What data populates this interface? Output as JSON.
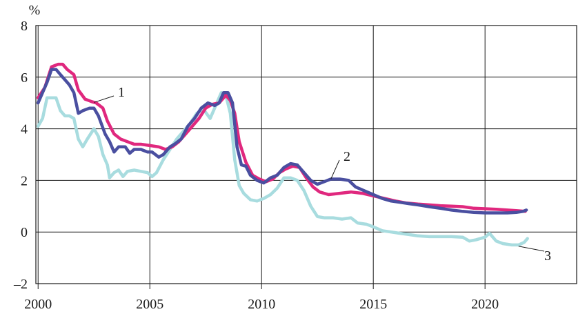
{
  "chart_data": {
    "type": "line",
    "ylabel": "%",
    "xlabel": "",
    "title": "",
    "xlim": [
      1999.9,
      2024.1
    ],
    "ylim": [
      -2,
      8
    ],
    "x_ticks": [
      2000,
      2005,
      2010,
      2015,
      2020
    ],
    "x_tick_labels": [
      "2000",
      "2005",
      "2010",
      "2015",
      "2020"
    ],
    "y_ticks": [
      -2,
      0,
      2,
      4,
      6,
      8
    ],
    "y_tick_labels": [
      "–2",
      "0",
      "2",
      "4",
      "6",
      "8"
    ],
    "grid": "vertical at x ticks, horizontal at y ticks",
    "legend": "none (series numbered by callouts)",
    "series": [
      {
        "name": "1",
        "color": "#e0287e",
        "points": [
          [
            2000.0,
            5.2
          ],
          [
            2000.3,
            5.6
          ],
          [
            2000.6,
            6.4
          ],
          [
            2000.9,
            6.5
          ],
          [
            2001.1,
            6.5
          ],
          [
            2001.3,
            6.3
          ],
          [
            2001.6,
            6.1
          ],
          [
            2001.8,
            5.5
          ],
          [
            2002.1,
            5.15
          ],
          [
            2002.4,
            5.05
          ],
          [
            2002.6,
            5.0
          ],
          [
            2002.9,
            4.8
          ],
          [
            2003.1,
            4.3
          ],
          [
            2003.4,
            3.8
          ],
          [
            2003.7,
            3.6
          ],
          [
            2004.0,
            3.5
          ],
          [
            2004.3,
            3.4
          ],
          [
            2004.6,
            3.4
          ],
          [
            2005.0,
            3.35
          ],
          [
            2005.4,
            3.3
          ],
          [
            2005.7,
            3.2
          ],
          [
            2006.0,
            3.3
          ],
          [
            2006.3,
            3.5
          ],
          [
            2006.6,
            3.8
          ],
          [
            2006.9,
            4.1
          ],
          [
            2007.2,
            4.4
          ],
          [
            2007.5,
            4.8
          ],
          [
            2007.8,
            4.95
          ],
          [
            2008.1,
            5.0
          ],
          [
            2008.4,
            5.3
          ],
          [
            2008.6,
            5.1
          ],
          [
            2008.8,
            4.6
          ],
          [
            2009.0,
            3.5
          ],
          [
            2009.3,
            2.7
          ],
          [
            2009.6,
            2.2
          ],
          [
            2009.9,
            2.05
          ],
          [
            2010.2,
            1.95
          ],
          [
            2010.5,
            2.05
          ],
          [
            2010.8,
            2.3
          ],
          [
            2011.1,
            2.45
          ],
          [
            2011.4,
            2.55
          ],
          [
            2011.7,
            2.5
          ],
          [
            2012.0,
            2.1
          ],
          [
            2012.3,
            1.75
          ],
          [
            2012.6,
            1.55
          ],
          [
            2013.0,
            1.45
          ],
          [
            2013.5,
            1.5
          ],
          [
            2014.0,
            1.55
          ],
          [
            2014.5,
            1.5
          ],
          [
            2015.0,
            1.4
          ],
          [
            2015.5,
            1.3
          ],
          [
            2016.0,
            1.2
          ],
          [
            2016.5,
            1.12
          ],
          [
            2017.0,
            1.08
          ],
          [
            2017.5,
            1.05
          ],
          [
            2018.0,
            1.02
          ],
          [
            2018.5,
            1.0
          ],
          [
            2019.0,
            0.98
          ],
          [
            2019.5,
            0.92
          ],
          [
            2020.0,
            0.9
          ],
          [
            2020.5,
            0.88
          ],
          [
            2021.0,
            0.85
          ],
          [
            2021.5,
            0.82
          ],
          [
            2021.8,
            0.8
          ]
        ]
      },
      {
        "name": "2",
        "color": "#4a4fa0",
        "points": [
          [
            2000.0,
            5.0
          ],
          [
            2000.2,
            5.4
          ],
          [
            2000.4,
            5.8
          ],
          [
            2000.6,
            6.3
          ],
          [
            2000.8,
            6.3
          ],
          [
            2001.0,
            6.1
          ],
          [
            2001.2,
            5.9
          ],
          [
            2001.4,
            5.7
          ],
          [
            2001.6,
            5.4
          ],
          [
            2001.8,
            4.6
          ],
          [
            2002.0,
            4.7
          ],
          [
            2002.3,
            4.8
          ],
          [
            2002.5,
            4.8
          ],
          [
            2002.7,
            4.5
          ],
          [
            2003.0,
            3.8
          ],
          [
            2003.2,
            3.5
          ],
          [
            2003.4,
            3.1
          ],
          [
            2003.6,
            3.3
          ],
          [
            2003.9,
            3.3
          ],
          [
            2004.1,
            3.05
          ],
          [
            2004.3,
            3.2
          ],
          [
            2004.6,
            3.2
          ],
          [
            2004.9,
            3.1
          ],
          [
            2005.1,
            3.1
          ],
          [
            2005.4,
            2.9
          ],
          [
            2005.6,
            3.0
          ],
          [
            2005.9,
            3.3
          ],
          [
            2006.1,
            3.4
          ],
          [
            2006.4,
            3.6
          ],
          [
            2006.7,
            4.1
          ],
          [
            2007.0,
            4.4
          ],
          [
            2007.3,
            4.8
          ],
          [
            2007.6,
            5.0
          ],
          [
            2007.9,
            4.9
          ],
          [
            2008.1,
            5.0
          ],
          [
            2008.3,
            5.4
          ],
          [
            2008.5,
            5.4
          ],
          [
            2008.7,
            5.0
          ],
          [
            2008.9,
            3.3
          ],
          [
            2009.1,
            2.6
          ],
          [
            2009.3,
            2.55
          ],
          [
            2009.5,
            2.2
          ],
          [
            2009.8,
            2.0
          ],
          [
            2010.1,
            1.9
          ],
          [
            2010.4,
            2.1
          ],
          [
            2010.7,
            2.2
          ],
          [
            2011.0,
            2.5
          ],
          [
            2011.3,
            2.65
          ],
          [
            2011.6,
            2.6
          ],
          [
            2011.9,
            2.3
          ],
          [
            2012.2,
            2.0
          ],
          [
            2012.5,
            1.85
          ],
          [
            2012.8,
            1.95
          ],
          [
            2013.1,
            2.05
          ],
          [
            2013.5,
            2.05
          ],
          [
            2013.9,
            2.0
          ],
          [
            2014.2,
            1.75
          ],
          [
            2014.6,
            1.6
          ],
          [
            2015.0,
            1.45
          ],
          [
            2015.4,
            1.3
          ],
          [
            2015.8,
            1.2
          ],
          [
            2016.2,
            1.15
          ],
          [
            2016.6,
            1.1
          ],
          [
            2017.0,
            1.05
          ],
          [
            2017.5,
            0.98
          ],
          [
            2018.0,
            0.92
          ],
          [
            2018.5,
            0.85
          ],
          [
            2019.0,
            0.8
          ],
          [
            2019.5,
            0.76
          ],
          [
            2020.0,
            0.74
          ],
          [
            2020.5,
            0.74
          ],
          [
            2021.0,
            0.74
          ],
          [
            2021.4,
            0.76
          ],
          [
            2021.7,
            0.8
          ],
          [
            2021.85,
            0.85
          ]
        ]
      },
      {
        "name": "3",
        "color": "#a8dcdf",
        "points": [
          [
            2000.0,
            4.1
          ],
          [
            2000.2,
            4.4
          ],
          [
            2000.4,
            5.2
          ],
          [
            2000.6,
            5.2
          ],
          [
            2000.8,
            5.2
          ],
          [
            2001.0,
            4.7
          ],
          [
            2001.2,
            4.5
          ],
          [
            2001.4,
            4.5
          ],
          [
            2001.6,
            4.4
          ],
          [
            2001.8,
            3.6
          ],
          [
            2002.0,
            3.3
          ],
          [
            2002.2,
            3.6
          ],
          [
            2002.5,
            4.0
          ],
          [
            2002.7,
            3.7
          ],
          [
            2002.9,
            3.0
          ],
          [
            2003.1,
            2.6
          ],
          [
            2003.2,
            2.1
          ],
          [
            2003.4,
            2.3
          ],
          [
            2003.6,
            2.4
          ],
          [
            2003.8,
            2.15
          ],
          [
            2004.0,
            2.35
          ],
          [
            2004.3,
            2.4
          ],
          [
            2004.6,
            2.35
          ],
          [
            2004.9,
            2.3
          ],
          [
            2005.1,
            2.15
          ],
          [
            2005.3,
            2.3
          ],
          [
            2005.6,
            2.8
          ],
          [
            2005.9,
            3.2
          ],
          [
            2006.2,
            3.6
          ],
          [
            2006.5,
            3.9
          ],
          [
            2006.8,
            4.2
          ],
          [
            2007.1,
            4.6
          ],
          [
            2007.4,
            4.75
          ],
          [
            2007.7,
            4.4
          ],
          [
            2008.0,
            5.0
          ],
          [
            2008.2,
            5.4
          ],
          [
            2008.4,
            5.3
          ],
          [
            2008.6,
            4.6
          ],
          [
            2008.8,
            2.8
          ],
          [
            2009.0,
            1.8
          ],
          [
            2009.2,
            1.5
          ],
          [
            2009.5,
            1.25
          ],
          [
            2009.8,
            1.2
          ],
          [
            2010.1,
            1.3
          ],
          [
            2010.4,
            1.45
          ],
          [
            2010.7,
            1.7
          ],
          [
            2011.0,
            2.1
          ],
          [
            2011.3,
            2.1
          ],
          [
            2011.6,
            2.0
          ],
          [
            2011.9,
            1.6
          ],
          [
            2012.2,
            1.0
          ],
          [
            2012.5,
            0.6
          ],
          [
            2012.8,
            0.55
          ],
          [
            2013.2,
            0.55
          ],
          [
            2013.6,
            0.5
          ],
          [
            2014.0,
            0.55
          ],
          [
            2014.3,
            0.35
          ],
          [
            2014.7,
            0.3
          ],
          [
            2015.0,
            0.2
          ],
          [
            2015.4,
            0.05
          ],
          [
            2015.8,
            0.0
          ],
          [
            2016.2,
            -0.05
          ],
          [
            2016.6,
            -0.1
          ],
          [
            2017.0,
            -0.15
          ],
          [
            2017.5,
            -0.18
          ],
          [
            2018.0,
            -0.18
          ],
          [
            2018.5,
            -0.18
          ],
          [
            2019.0,
            -0.2
          ],
          [
            2019.3,
            -0.35
          ],
          [
            2019.6,
            -0.3
          ],
          [
            2020.0,
            -0.2
          ],
          [
            2020.2,
            -0.05
          ],
          [
            2020.5,
            -0.35
          ],
          [
            2020.8,
            -0.45
          ],
          [
            2021.2,
            -0.5
          ],
          [
            2021.5,
            -0.5
          ],
          [
            2021.75,
            -0.4
          ],
          [
            2021.9,
            -0.25
          ]
        ]
      }
    ],
    "annotations": [
      {
        "text": "1",
        "series": "1"
      },
      {
        "text": "2",
        "series": "2"
      },
      {
        "text": "3",
        "series": "3"
      }
    ]
  }
}
